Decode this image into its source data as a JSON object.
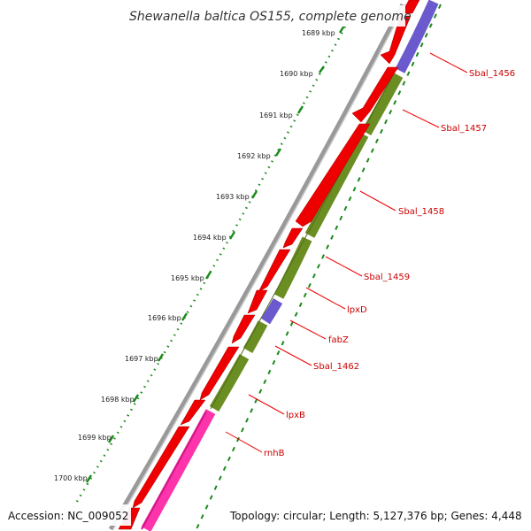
{
  "title": "Shewanella baltica OS155, complete genome",
  "footer": {
    "accession": "Accession: NC_009052",
    "topology": "Topology: circular; Length: 5,127,376 bp; Genes: 4,448"
  },
  "ticks": [
    {
      "label": "1689 kbp"
    },
    {
      "label": "1690 kbp"
    },
    {
      "label": "1691 kbp"
    },
    {
      "label": "1692 kbp"
    },
    {
      "label": "1693 kbp"
    },
    {
      "label": "1694 kbp"
    },
    {
      "label": "1695 kbp"
    },
    {
      "label": "1696 kbp"
    },
    {
      "label": "1697 kbp"
    },
    {
      "label": "1698 kbp"
    },
    {
      "label": "1699 kbp"
    },
    {
      "label": "1700 kbp"
    }
  ],
  "gene_labels": [
    {
      "text": "Sbal_1456"
    },
    {
      "text": "Sbal_1457"
    },
    {
      "text": "Sbal_1458"
    },
    {
      "text": "Sbal_1459"
    },
    {
      "text": "lpxD"
    },
    {
      "text": "fabZ"
    },
    {
      "text": "Sbal_1462"
    },
    {
      "text": "lpxB"
    },
    {
      "text": "rnhB"
    }
  ],
  "colors": {
    "cds_forward": "#ee0000",
    "gene_olive": "#6b8e23",
    "gene_blue": "#6a5acd",
    "gene_magenta": "#ff33aa",
    "backbone": "#888888",
    "tick_green": "#1a8a1a",
    "label_red": "#cc0000"
  }
}
